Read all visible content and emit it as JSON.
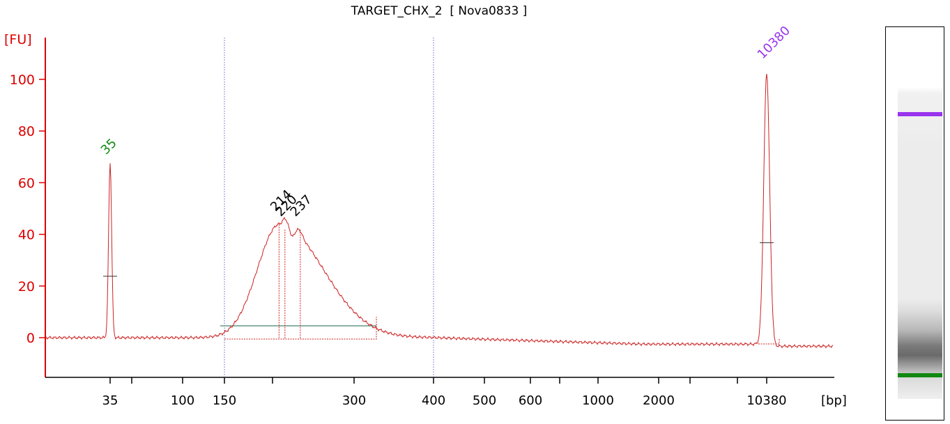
{
  "chart_data": {
    "type": "line",
    "title": "TARGET_CHX_2  [ Nova0833 ]",
    "ylabel": "[FU]",
    "xlabel": "[bp]",
    "ylim": [
      -15,
      115
    ],
    "yticks": [
      0,
      20,
      40,
      60,
      80,
      100
    ],
    "xticks": [
      "35",
      "100",
      "150",
      "300",
      "400",
      "500",
      "600",
      "1000",
      "2000",
      "10380"
    ],
    "x_scale": "nonlinear (marker-calibrated bp)",
    "colors": {
      "trace": "#cc2222",
      "axis": "#dd0000",
      "lower_marker": "#118811",
      "upper_marker": "#9933ee",
      "peak_label": "#000000",
      "region_line": "#669988",
      "region_bounds": "#6666cc"
    },
    "peaks": [
      {
        "label": "35",
        "bp": 35,
        "fu": 68,
        "role": "lower_marker"
      },
      {
        "label": "214",
        "bp": 214,
        "fu": 46,
        "role": "sample"
      },
      {
        "label": "220",
        "bp": 220,
        "fu": 44,
        "role": "sample"
      },
      {
        "label": "237",
        "bp": 237,
        "fu": 44,
        "role": "sample"
      },
      {
        "label": "10380",
        "bp": 10380,
        "fu": 105,
        "role": "upper_marker"
      }
    ],
    "region": {
      "from_bp": 150,
      "to_bp": 400
    }
  }
}
